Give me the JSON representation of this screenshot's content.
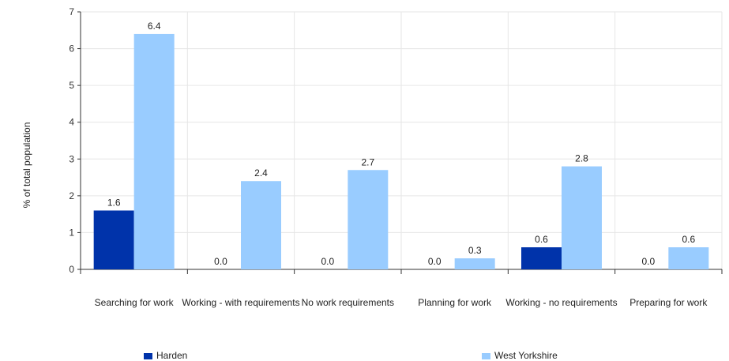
{
  "chart_data": {
    "type": "bar",
    "title": "",
    "xlabel": "",
    "ylabel": "% of total population",
    "ylim": [
      0,
      7
    ],
    "yticks": [
      0,
      1,
      2,
      3,
      4,
      5,
      6,
      7
    ],
    "grid": true,
    "legend_position": "bottom",
    "categories": [
      "Searching for work",
      "Working - with requirements",
      "No work requirements",
      "Planning for work",
      "Working - no requirements",
      "Preparing for work"
    ],
    "series": [
      {
        "name": "Harden",
        "color": "#0033aa",
        "values": [
          1.6,
          0.0,
          0.0,
          0.0,
          0.6,
          0.0
        ],
        "labels": [
          "1.6",
          "0.0",
          "0.0",
          "0.0",
          "0.6",
          "0.0"
        ]
      },
      {
        "name": "West Yorkshire",
        "color": "#99ccff",
        "values": [
          6.4,
          2.4,
          2.7,
          0.3,
          2.8,
          0.6
        ],
        "labels": [
          "6.4",
          "2.4",
          "2.7",
          "0.3",
          "2.8",
          "0.6"
        ]
      }
    ]
  }
}
